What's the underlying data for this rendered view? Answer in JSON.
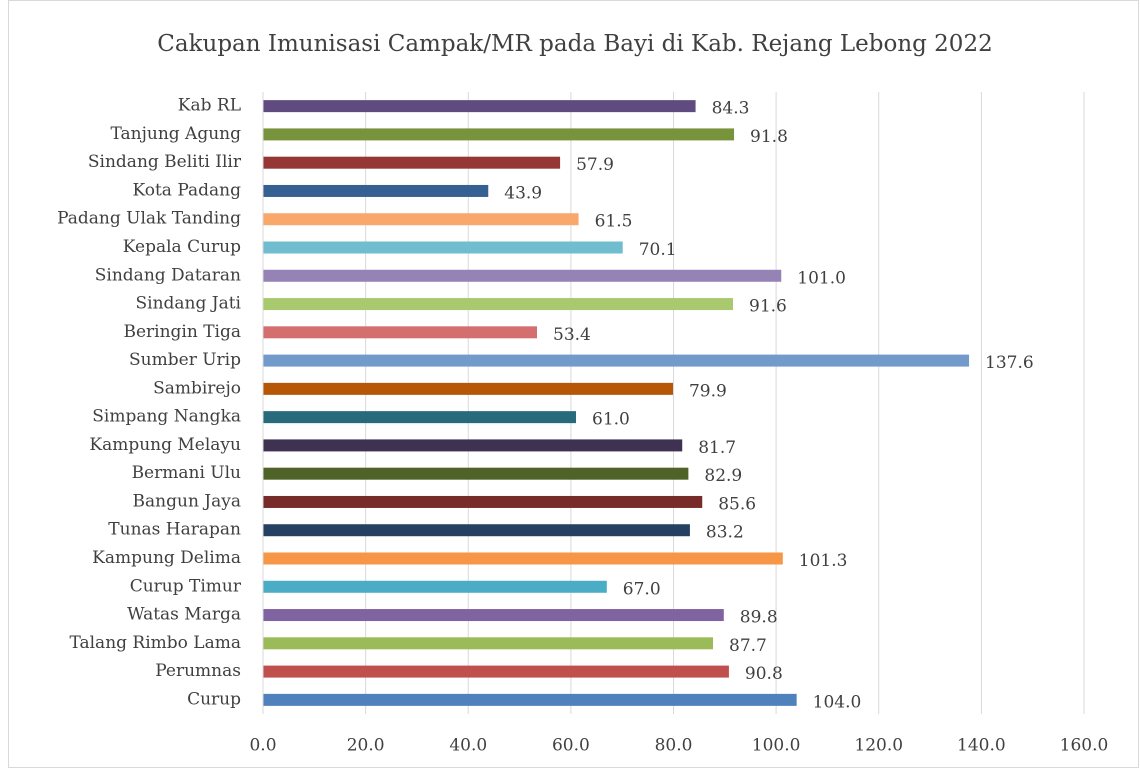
{
  "chart_data": {
    "type": "bar",
    "orientation": "horizontal",
    "title": "Cakupan Imunisasi Campak/MR pada Bayi di Kab. Rejang Lebong 2022",
    "categories": [
      "Kab RL",
      "Tanjung Agung",
      "Sindang Beliti Ilir",
      "Kota Padang",
      "Padang Ulak Tanding",
      "Kepala Curup",
      "Sindang Dataran",
      "Sindang Jati",
      "Beringin Tiga",
      "Sumber Urip",
      "Sambirejo",
      "Simpang Nangka",
      "Kampung Melayu",
      "Bermani Ulu",
      "Bangun Jaya",
      "Tunas Harapan",
      "Kampung Delima",
      "Curup Timur",
      "Watas Marga",
      "Talang Rimbo Lama",
      "Perumnas",
      "Curup"
    ],
    "values": [
      84.3,
      91.8,
      57.9,
      43.9,
      61.5,
      70.1,
      101.0,
      91.6,
      53.4,
      137.6,
      79.9,
      61.0,
      81.7,
      82.9,
      85.6,
      83.2,
      101.3,
      67.0,
      89.8,
      87.7,
      90.8,
      104.0
    ],
    "value_labels": [
      "84.3",
      "91.8",
      "57.9",
      "43.9",
      "61.5",
      "70.1",
      "101.0",
      "91.6",
      "53.4",
      "137.6",
      "79.9",
      "61.0",
      "81.7",
      "82.9",
      "85.6",
      "83.2",
      "101.3",
      "67.0",
      "89.8",
      "87.7",
      "90.8",
      "104.0"
    ],
    "colors": [
      "#5f4b7f",
      "#77933c",
      "#953735",
      "#376092",
      "#f9a86b",
      "#6fbdcf",
      "#9683b5",
      "#a9c96f",
      "#d46f6f",
      "#729acb",
      "#b65708",
      "#276a7c",
      "#3f3151",
      "#4f6228",
      "#772c2a",
      "#254061",
      "#f79646",
      "#4bacc6",
      "#8064a2",
      "#9bbb59",
      "#c0504d",
      "#4f81bd"
    ],
    "xlim": [
      0,
      160
    ],
    "xticks": [
      {
        "value": 0,
        "label": "0.0"
      },
      {
        "value": 20,
        "label": "20.0"
      },
      {
        "value": 40,
        "label": "40.0"
      },
      {
        "value": 60,
        "label": "60.0"
      },
      {
        "value": 80,
        "label": "80.0"
      },
      {
        "value": 100,
        "label": "100.0"
      },
      {
        "value": 120,
        "label": "120.0"
      },
      {
        "value": 140,
        "label": "140.0"
      },
      {
        "value": 160,
        "label": "160.0"
      }
    ],
    "grid": true
  }
}
